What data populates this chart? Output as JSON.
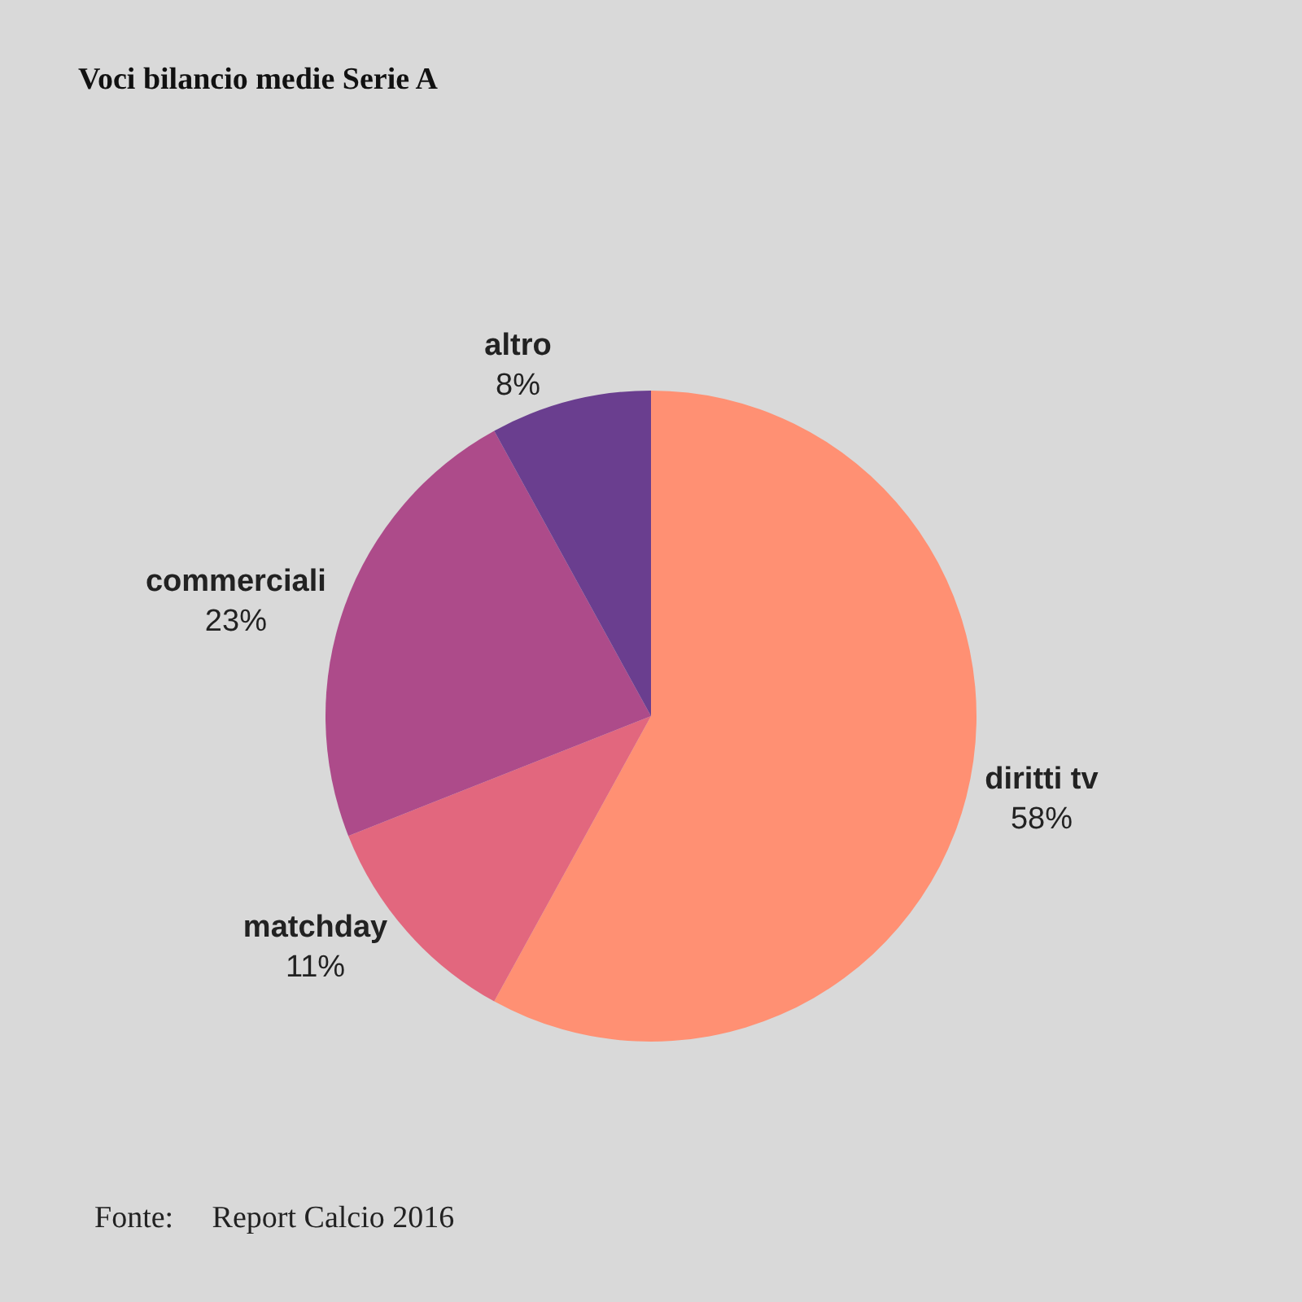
{
  "chart_data": {
    "type": "pie",
    "title": "Voci bilancio medie Serie A",
    "categories": [
      "diritti tv",
      "matchday",
      "commerciali",
      "altro"
    ],
    "values": [
      58,
      11,
      23,
      8
    ],
    "colors": [
      "#ff9073",
      "#e2677e",
      "#ad4b8a",
      "#6a3e8f"
    ],
    "value_labels": [
      "58%",
      "11%",
      "23%",
      "8%"
    ],
    "annotations": [
      "Fonte:     Report Calcio 2016"
    ]
  }
}
